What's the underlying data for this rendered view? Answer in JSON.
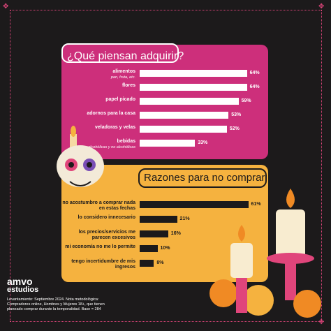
{
  "panel_pink": {
    "title": "¿Qué piensan adquirir?"
  },
  "panel_yellow": {
    "title": "Razones para no comprar"
  },
  "chart_data": [
    {
      "type": "bar",
      "title": "¿Qué piensan adquirir?",
      "categories": [
        "alimentos",
        "flores",
        "papel picado",
        "adornos para la casa",
        "veladoras y velas",
        "bebidas"
      ],
      "subtitles": [
        "pan, fruta, etc.",
        "",
        "",
        "",
        "",
        "alcohólicas y no alcohólicas"
      ],
      "values": [
        64,
        64,
        59,
        53,
        52,
        33
      ],
      "value_labels": [
        "64%",
        "64%",
        "59%",
        "53%",
        "52%",
        "33%"
      ],
      "bar_color": "#ffffff",
      "xlim": [
        0,
        100
      ]
    },
    {
      "type": "bar",
      "title": "Razones para no comprar",
      "categories": [
        "no acostumbro a comprar nada en estas fechas",
        "lo considero innecesario",
        "los precios/servicios me parecen excesivos",
        "mi economía no me lo permite",
        "tengo incertidumbre de mis ingresos"
      ],
      "values": [
        61,
        21,
        16,
        10,
        8
      ],
      "value_labels": [
        "61%",
        "21%",
        "16%",
        "10%",
        "8%"
      ],
      "bar_color": "#1c1a1b",
      "xlim": [
        0,
        100
      ]
    }
  ],
  "logo": {
    "line1": "amvo",
    "line2": "estudios"
  },
  "footnote": "Levantamiento: Septiembre 2024. Nota metodológica: Compradores online, Hombres y Mujeres 18+, que tienen planeado comprar durante la temporalidad. Base = 284",
  "colors": {
    "background": "#1c1a1b",
    "pink": "#cd2f7b",
    "yellow": "#f5b23f",
    "orange": "#f08a24"
  }
}
